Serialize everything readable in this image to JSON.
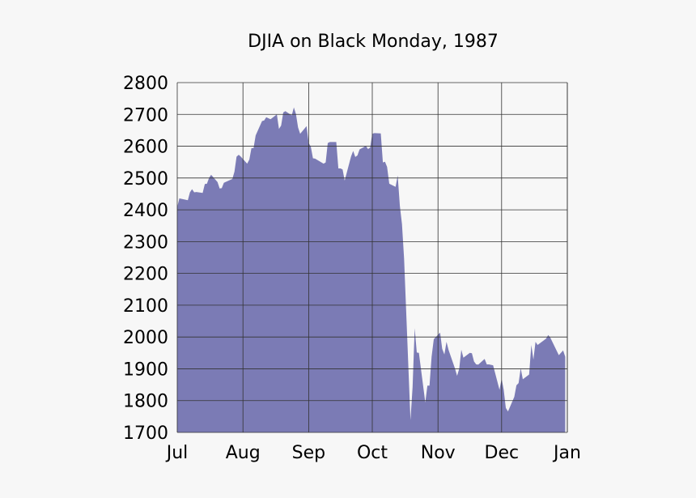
{
  "chart_data": {
    "type": "area",
    "title": "DJIA on Black Monday, 1987",
    "xlabel": "",
    "ylabel": "",
    "ylim": [
      1700,
      2800
    ],
    "xlim": [
      "1987-07-01",
      "1988-01-01"
    ],
    "grid": true,
    "y_ticks": [
      1700,
      1800,
      1900,
      2000,
      2100,
      2200,
      2300,
      2400,
      2500,
      2600,
      2700,
      2800
    ],
    "x_ticks": [
      {
        "date": "1987-07-01",
        "label": "Jul"
      },
      {
        "date": "1987-08-01",
        "label": "Aug"
      },
      {
        "date": "1987-09-01",
        "label": "Sep"
      },
      {
        "date": "1987-10-01",
        "label": "Oct"
      },
      {
        "date": "1987-11-01",
        "label": "Nov"
      },
      {
        "date": "1987-12-01",
        "label": "Dec"
      },
      {
        "date": "1988-01-01",
        "label": "Jan"
      }
    ],
    "colors": {
      "fill": "#7b7bb5",
      "grid": "#333333",
      "background": "#f7f7f7"
    },
    "series": [
      {
        "x": [
          "1987-07-01",
          "1987-07-02",
          "1987-07-06",
          "1987-07-07",
          "1987-07-08",
          "1987-07-09",
          "1987-07-10",
          "1987-07-13",
          "1987-07-14",
          "1987-07-15",
          "1987-07-16",
          "1987-07-17",
          "1987-07-20",
          "1987-07-21",
          "1987-07-22",
          "1987-07-23",
          "1987-07-24",
          "1987-07-27",
          "1987-07-28",
          "1987-07-29",
          "1987-07-30",
          "1987-07-31",
          "1987-08-03",
          "1987-08-04",
          "1987-08-05",
          "1987-08-06",
          "1987-08-07",
          "1987-08-10",
          "1987-08-11",
          "1987-08-12",
          "1987-08-13",
          "1987-08-14",
          "1987-08-17",
          "1987-08-18",
          "1987-08-19",
          "1987-08-20",
          "1987-08-21",
          "1987-08-24",
          "1987-08-25",
          "1987-08-26",
          "1987-08-27",
          "1987-08-28",
          "1987-08-31",
          "1987-09-01",
          "1987-09-02",
          "1987-09-03",
          "1987-09-04",
          "1987-09-08",
          "1987-09-09",
          "1987-09-10",
          "1987-09-11",
          "1987-09-14",
          "1987-09-15",
          "1987-09-16",
          "1987-09-17",
          "1987-09-18",
          "1987-09-21",
          "1987-09-22",
          "1987-09-23",
          "1987-09-24",
          "1987-09-25",
          "1987-09-28",
          "1987-09-29",
          "1987-09-30",
          "1987-10-01",
          "1987-10-02",
          "1987-10-05",
          "1987-10-06",
          "1987-10-07",
          "1987-10-08",
          "1987-10-09",
          "1987-10-12",
          "1987-10-13",
          "1987-10-14",
          "1987-10-15",
          "1987-10-16",
          "1987-10-19",
          "1987-10-20",
          "1987-10-21",
          "1987-10-22",
          "1987-10-23",
          "1987-10-26",
          "1987-10-27",
          "1987-10-28",
          "1987-10-29",
          "1987-10-30",
          "1987-11-02",
          "1987-11-03",
          "1987-11-04",
          "1987-11-05",
          "1987-11-06",
          "1987-11-09",
          "1987-11-10",
          "1987-11-11",
          "1987-11-12",
          "1987-11-13",
          "1987-11-16",
          "1987-11-17",
          "1987-11-18",
          "1987-11-19",
          "1987-11-20",
          "1987-11-23",
          "1987-11-24",
          "1987-11-25",
          "1987-11-27",
          "1987-11-30",
          "1987-12-01",
          "1987-12-02",
          "1987-12-03",
          "1987-12-04",
          "1987-12-07",
          "1987-12-08",
          "1987-12-09",
          "1987-12-10",
          "1987-12-11",
          "1987-12-14",
          "1987-12-15",
          "1987-12-16",
          "1987-12-17",
          "1987-12-18",
          "1987-12-21",
          "1987-12-22",
          "1987-12-23",
          "1987-12-24",
          "1987-12-28",
          "1987-12-29",
          "1987-12-30",
          "1987-12-31"
        ],
        "values": [
          2409,
          2436,
          2430,
          2455,
          2465,
          2455,
          2456,
          2453,
          2481,
          2482,
          2500,
          2510,
          2487,
          2467,
          2468,
          2485,
          2488,
          2497,
          2520,
          2567,
          2573,
          2567,
          2545,
          2558,
          2594,
          2594,
          2634,
          2679,
          2681,
          2691,
          2688,
          2685,
          2700,
          2654,
          2665,
          2706,
          2710,
          2697,
          2722,
          2701,
          2659,
          2639,
          2663,
          2610,
          2599,
          2562,
          2561,
          2545,
          2549,
          2610,
          2613,
          2613,
          2530,
          2530,
          2527,
          2492,
          2568,
          2585,
          2566,
          2571,
          2590,
          2601,
          2591,
          2596,
          2639,
          2641,
          2640,
          2549,
          2551,
          2535,
          2482,
          2472,
          2508,
          2412,
          2355,
          2247,
          1739,
          1842,
          2028,
          1951,
          1950,
          1794,
          1847,
          1847,
          1938,
          1993,
          2014,
          1963,
          1945,
          1985,
          1959,
          1901,
          1878,
          1900,
          1960,
          1935,
          1950,
          1949,
          1923,
          1914,
          1913,
          1931,
          1914,
          1914,
          1911,
          1834,
          1869,
          1834,
          1777,
          1766,
          1812,
          1848,
          1855,
          1902,
          1867,
          1882,
          1975,
          1929,
          1985,
          1975,
          1990,
          1995,
          2006,
          1998,
          1943,
          1950,
          1958,
          1938
        ]
      }
    ]
  }
}
